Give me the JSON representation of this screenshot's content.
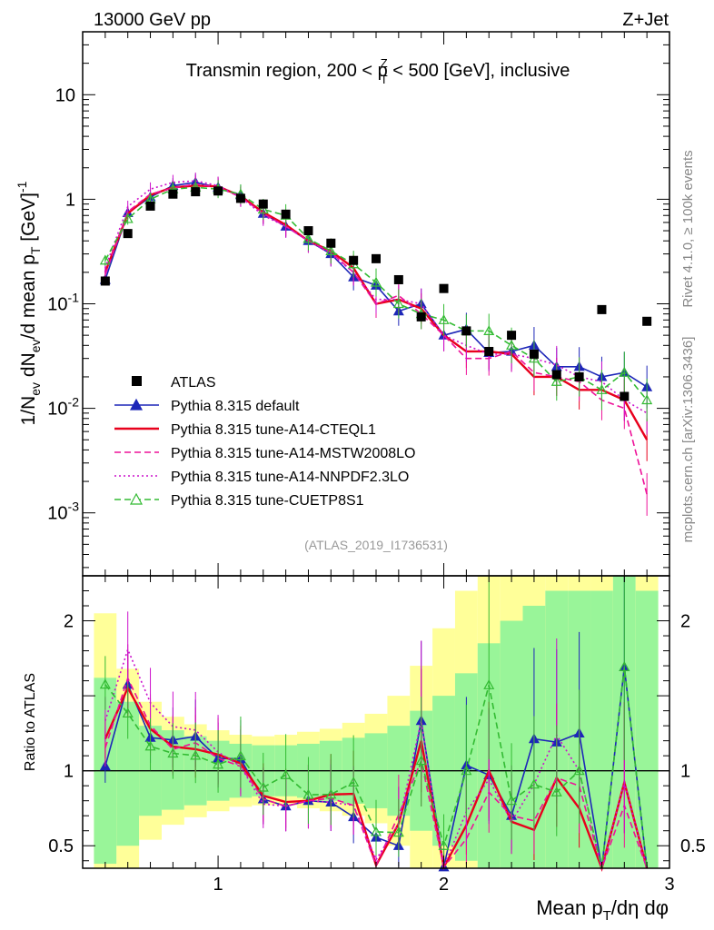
{
  "header": {
    "left": "13000 GeV pp",
    "right": "Z+Jet"
  },
  "side_labels": {
    "rivet": "Rivet 4.1.0, ≥ 100k events",
    "mcplots": "mcplots.cern.ch [arXiv:1306.3436]"
  },
  "chart_data": {
    "type": "line",
    "title_pre": "Transmin region, 200 < p",
    "title_sup": "Z",
    "title_sub": "T",
    "title_post": " < 500 [GeV], inclusive",
    "analysis_id": "(ATLAS_2019_I1736531)",
    "ylabel": "1/N_ev dN_ev/d mean p_T [GeV]^-1",
    "ratio_ylabel": "Ratio to ATLAS",
    "xlabel": "Mean p_T/dη dφ",
    "xlim": [
      0.4,
      3.0
    ],
    "ylim": [
      0.00025,
      40
    ],
    "ratio_ylim": [
      0.35,
      2.3
    ],
    "main_yticks": [
      {
        "value": 10,
        "label": "10"
      },
      {
        "value": 1,
        "label": "1"
      },
      {
        "value": 0.1,
        "label": "10^-1"
      },
      {
        "value": 0.01,
        "label": "10^-2"
      },
      {
        "value": 0.001,
        "label": "10^-3"
      }
    ],
    "ratio_yticks": [
      {
        "value": 2,
        "label": "2"
      },
      {
        "value": 1,
        "label": "1"
      },
      {
        "value": 0.5,
        "label": "0.5"
      }
    ],
    "xticks": [
      {
        "value": 1,
        "label": "1"
      },
      {
        "value": 2,
        "label": "2"
      },
      {
        "value": 3,
        "label": "3"
      }
    ],
    "x": [
      0.5,
      0.6,
      0.7,
      0.8,
      0.9,
      1.0,
      1.1,
      1.2,
      1.3,
      1.4,
      1.5,
      1.6,
      1.7,
      1.8,
      1.9,
      2.0,
      2.1,
      2.2,
      2.3,
      2.4,
      2.5,
      2.6,
      2.7,
      2.8,
      2.9
    ],
    "data": {
      "name": "ATLAS",
      "values": [
        0.165,
        0.47,
        0.86,
        1.12,
        1.18,
        1.2,
        1.02,
        0.9,
        0.72,
        0.5,
        0.38,
        0.26,
        0.27,
        0.17,
        0.075,
        0.14,
        0.055,
        0.035,
        0.05,
        0.033,
        0.021,
        0.02,
        0.088,
        0.013,
        0.068
      ]
    },
    "bands": {
      "green_hi": [
        1.62,
        1.46,
        1.3,
        1.27,
        1.23,
        1.2,
        1.18,
        1.17,
        1.17,
        1.18,
        1.2,
        1.22,
        1.25,
        1.3,
        1.4,
        1.5,
        1.65,
        1.85,
        2.0,
        2.1,
        2.2,
        2.2,
        2.2,
        2.3,
        2.2
      ],
      "green_lo": [
        0.38,
        0.5,
        0.7,
        0.74,
        0.77,
        0.8,
        0.82,
        0.83,
        0.83,
        0.82,
        0.8,
        0.78,
        0.75,
        0.7,
        0.6,
        0.5,
        0.4,
        0.35,
        0.3,
        0.3,
        0.3,
        0.3,
        0.3,
        0.3,
        0.3
      ],
      "yellow_hi": [
        2.05,
        1.68,
        1.46,
        1.36,
        1.31,
        1.27,
        1.24,
        1.23,
        1.24,
        1.26,
        1.28,
        1.32,
        1.38,
        1.5,
        1.7,
        1.95,
        2.2,
        2.4,
        2.4,
        2.4,
        2.4,
        2.4,
        2.4,
        2.4,
        2.4
      ],
      "yellow_lo": [
        0.3,
        0.32,
        0.54,
        0.64,
        0.69,
        0.73,
        0.76,
        0.77,
        0.77,
        0.75,
        0.73,
        0.7,
        0.65,
        0.5,
        0.35,
        0.3,
        0.3,
        0.3,
        0.3,
        0.3,
        0.3,
        0.3,
        0.3,
        0.3,
        0.3
      ]
    },
    "series": [
      {
        "name": "Pythia 8.315 default",
        "color": "#1d26b8",
        "style": "solid",
        "marker": "triangle-filled",
        "values": [
          0.17,
          0.74,
          1.05,
          1.35,
          1.45,
          1.3,
          1.1,
          0.73,
          0.55,
          0.4,
          0.3,
          0.18,
          0.15,
          0.085,
          0.1,
          0.05,
          0.057,
          0.034,
          0.035,
          0.04,
          0.025,
          0.025,
          0.02,
          0.022,
          0.016
        ]
      },
      {
        "name": "Pythia 8.315 tune-A14-CTEQL1",
        "color": "#e8001c",
        "style": "solid",
        "marker": "none",
        "values": [
          0.2,
          0.73,
          1.1,
          1.3,
          1.35,
          1.33,
          1.07,
          0.75,
          0.57,
          0.4,
          0.32,
          0.22,
          0.1,
          0.11,
          0.09,
          0.05,
          0.035,
          0.035,
          0.033,
          0.02,
          0.02,
          0.015,
          0.015,
          0.012,
          0.005
        ]
      },
      {
        "name": "Pythia 8.315 tune-A14-MSTW2008LO",
        "color": "#ee1199",
        "style": "dashed",
        "marker": "none",
        "values": [
          0.19,
          0.76,
          1.12,
          1.28,
          1.4,
          1.3,
          1.05,
          0.73,
          0.55,
          0.4,
          0.31,
          0.2,
          0.1,
          0.12,
          0.08,
          0.05,
          0.03,
          0.03,
          0.035,
          0.022,
          0.02,
          0.018,
          0.012,
          0.01,
          0.0015
        ]
      },
      {
        "name": "Pythia 8.315 tune-A14-NNPDF2.3LO",
        "color": "#cc11cc",
        "style": "dotted",
        "marker": "none",
        "values": [
          0.22,
          0.85,
          1.25,
          1.45,
          1.5,
          1.35,
          1.05,
          0.7,
          0.55,
          0.4,
          0.3,
          0.2,
          0.11,
          0.11,
          0.1,
          0.05,
          0.04,
          0.033,
          0.033,
          0.03,
          0.026,
          0.02,
          0.018,
          0.012,
          0.009
        ]
      },
      {
        "name": "Pythia 8.315 tune-CUETP8S1",
        "color": "#33bb33",
        "style": "dashed",
        "marker": "triangle-open",
        "values": [
          0.26,
          0.65,
          1.0,
          1.25,
          1.3,
          1.25,
          1.12,
          0.8,
          0.7,
          0.42,
          0.32,
          0.24,
          0.16,
          0.1,
          0.08,
          0.07,
          0.055,
          0.055,
          0.04,
          0.03,
          0.018,
          0.02,
          0.015,
          0.022,
          0.012
        ]
      }
    ]
  }
}
